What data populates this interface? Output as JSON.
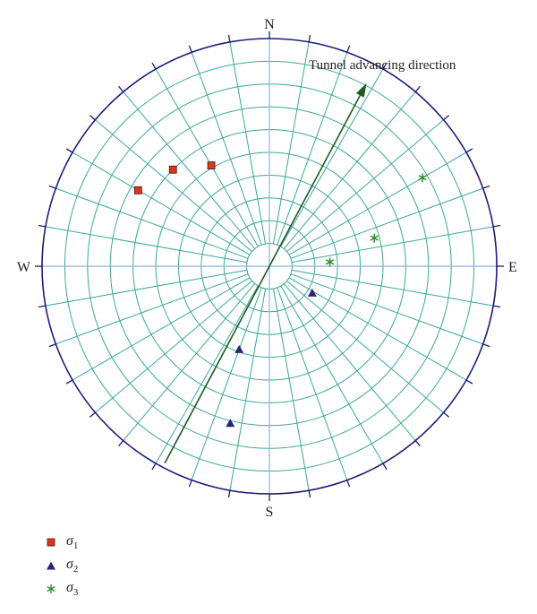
{
  "directions": {
    "north": "N",
    "south": "S",
    "east": "E",
    "west": "W"
  },
  "annotation": {
    "text": "Tunnel advancing direction",
    "trend_deg": 28
  },
  "colors": {
    "net": "#3aa89a",
    "primitive": "#1e1b7a",
    "arrow": "#1f5a1f",
    "axes": "#8fb4e0",
    "sigma1": "#d9351f",
    "sigma2": "#2a237f",
    "sigma3": "#2e8b2e"
  },
  "net": {
    "small_circles": 10,
    "meridian_step_deg": 10
  },
  "chart_data": {
    "type": "scatter",
    "projection": "polar stereonet (trend, plunge in degrees)",
    "series": [
      {
        "name": "σ1",
        "symbol": "σ",
        "subscript": "1",
        "marker": "square",
        "points": [
          {
            "trend": 330,
            "plunge": 44
          },
          {
            "trend": 315,
            "plunge": 36
          },
          {
            "trend": 300,
            "plunge": 30
          }
        ]
      },
      {
        "name": "σ2",
        "symbol": "σ",
        "subscript": "2",
        "marker": "triangle",
        "points": [
          {
            "trend": 122,
            "plunge": 70
          },
          {
            "trend": 200,
            "plunge": 55
          },
          {
            "trend": 194,
            "plunge": 26
          }
        ]
      },
      {
        "name": "σ3",
        "symbol": "σ",
        "subscript": "3",
        "marker": "asterisk",
        "points": [
          {
            "trend": 86,
            "plunge": 66
          },
          {
            "trend": 75,
            "plunge": 47
          },
          {
            "trend": 60,
            "plunge": 20
          }
        ]
      }
    ]
  }
}
